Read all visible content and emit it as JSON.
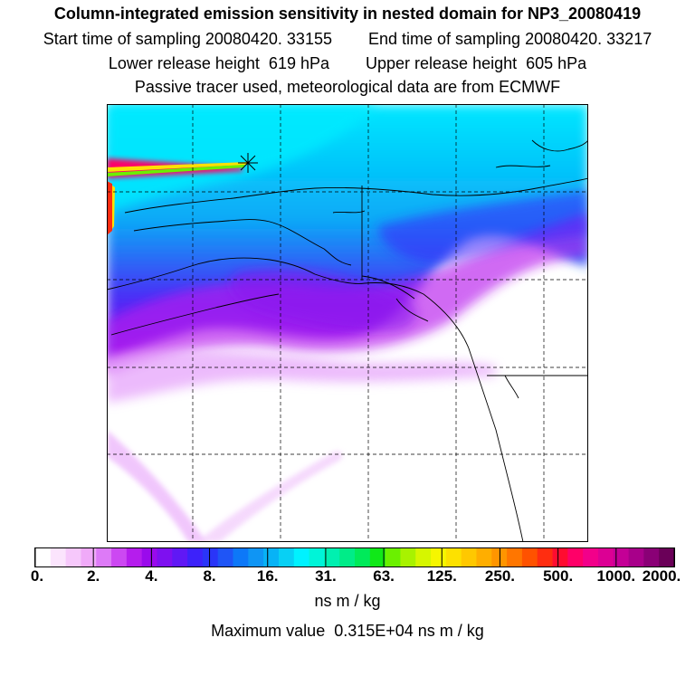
{
  "header": {
    "title": "Column-integrated emission sensitivity in nested domain for NP3_20080419",
    "start_time": "Start time of sampling 20080420. 33155",
    "end_time": "End time of sampling 20080420. 33217",
    "lower_height": "Lower release height  619 hPa",
    "upper_height": "Upper release height  605 hPa",
    "tracer_note": "Passive tracer used, meteorological data are from ECMWF"
  },
  "colorbar": {
    "tick_labels": [
      "0.",
      "2.",
      "4.",
      "8.",
      "16.",
      "31.",
      "63.",
      "125.",
      "250.",
      "500.",
      "1000.",
      "2000."
    ],
    "colors": [
      "#ffffff",
      "#fbe4fd",
      "#f6c8fb",
      "#f0aaf9",
      "#dd7af7",
      "#cc48f2",
      "#b51ded",
      "#9a0aec",
      "#7e10f0",
      "#6018f5",
      "#3d22fa",
      "#2a35f8",
      "#1f55f6",
      "#0d78f8",
      "#0f95f4",
      "#07b3f6",
      "#08d0f4",
      "#00f2ff",
      "#00f4d8",
      "#00f0b0",
      "#00ec88",
      "#00ea5a",
      "#10e818",
      "#6bf000",
      "#a8f200",
      "#d6f600",
      "#f6f600",
      "#fde100",
      "#ffc800",
      "#ffae00",
      "#ff9500",
      "#ff7600",
      "#ff5200",
      "#ff2d10",
      "#ff0c30",
      "#ff0068",
      "#f2008a",
      "#dc0094",
      "#c40096",
      "#a8008a",
      "#8a0076",
      "#6a0058"
    ],
    "units": "ns m / kg",
    "max_value_text": "Maximum value  0.315E+04 ns m / kg"
  },
  "map": {
    "release_marker": "release-location",
    "grid_lines": "dashed"
  }
}
